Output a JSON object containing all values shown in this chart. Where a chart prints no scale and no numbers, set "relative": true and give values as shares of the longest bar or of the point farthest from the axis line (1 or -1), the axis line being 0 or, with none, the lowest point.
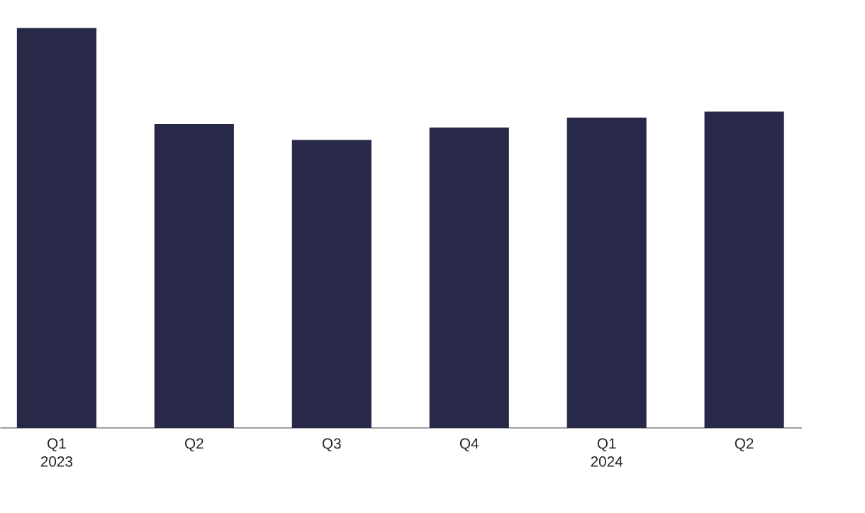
{
  "chart_data": {
    "type": "bar",
    "relative": true,
    "categories": [
      "Q1 2023",
      "Q2",
      "Q3",
      "Q4",
      "Q1 2024",
      "Q2"
    ],
    "values": [
      1,
      0.76,
      0.72,
      0.751,
      0.776,
      0.791
    ],
    "color": "#282848"
  }
}
